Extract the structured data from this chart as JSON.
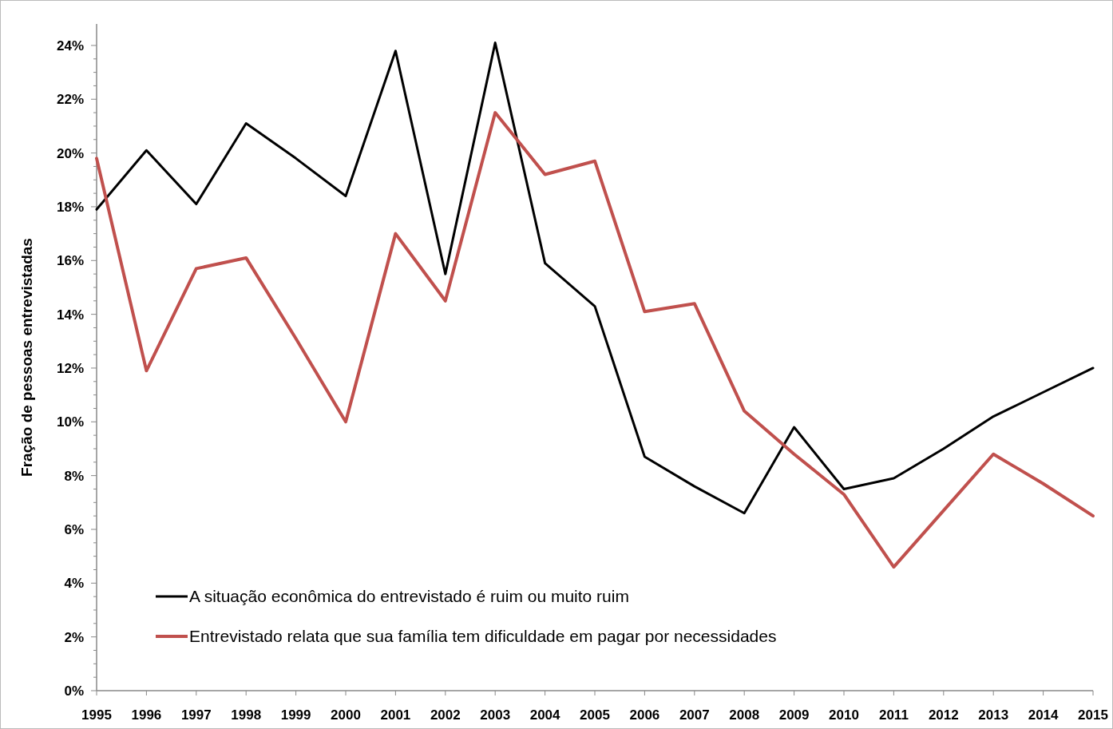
{
  "chart_data": {
    "type": "line",
    "ylabel": "Fração de pessoas entrevistadas",
    "categories": [
      "1995",
      "1996",
      "1997",
      "1998",
      "1999",
      "2000",
      "2001",
      "2002",
      "2003",
      "2004",
      "2005",
      "2006",
      "2007",
      "2008",
      "2009",
      "2010",
      "2011",
      "2012",
      "2013",
      "2014",
      "2015"
    ],
    "series": [
      {
        "name": "A situação econômica do entrevistado é ruim ou muito ruim",
        "color": "#000000",
        "values": [
          17.9,
          20.1,
          18.1,
          21.1,
          19.8,
          18.4,
          23.8,
          15.5,
          24.1,
          15.9,
          14.3,
          8.7,
          7.6,
          6.6,
          9.8,
          7.5,
          7.9,
          9.0,
          10.2,
          11.1,
          12.0
        ]
      },
      {
        "name": "Entrevistado relata que sua família tem dificuldade em pagar por necessidades",
        "color": "#c0504d",
        "values": [
          19.8,
          11.9,
          15.7,
          16.1,
          13.1,
          10.0,
          17.0,
          14.5,
          21.5,
          19.2,
          19.7,
          14.1,
          14.4,
          10.4,
          8.8,
          7.3,
          4.6,
          6.7,
          8.8,
          7.7,
          6.5
        ]
      }
    ],
    "ylim": [
      0,
      24.8
    ],
    "yticks": [
      {
        "value": 0,
        "label": "0%"
      },
      {
        "value": 2,
        "label": "2%"
      },
      {
        "value": 4,
        "label": "4%"
      },
      {
        "value": 6,
        "label": "6%"
      },
      {
        "value": 8,
        "label": "8%"
      },
      {
        "value": 10,
        "label": "10%"
      },
      {
        "value": 12,
        "label": "12%"
      },
      {
        "value": 14,
        "label": "14%"
      },
      {
        "value": 16,
        "label": "16%"
      },
      {
        "value": 18,
        "label": "18%"
      },
      {
        "value": 20,
        "label": "20%"
      },
      {
        "value": 22,
        "label": "22%"
      },
      {
        "value": 24,
        "label": "24%"
      }
    ],
    "grid": false,
    "legend": "bottom left",
    "marker": "none",
    "line_style": "solid"
  }
}
